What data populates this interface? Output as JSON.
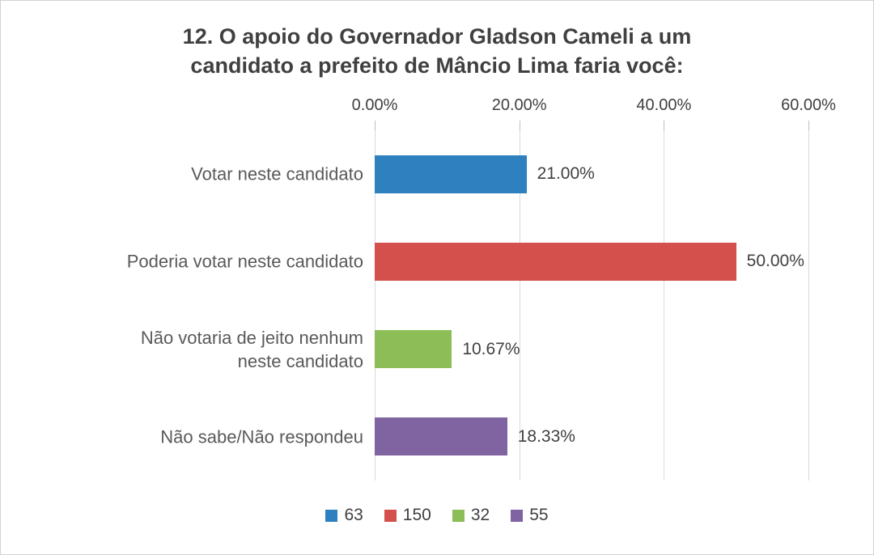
{
  "chart_data": {
    "type": "bar",
    "orientation": "horizontal",
    "title": "12. O apoio do Governador Gladson Cameli a um\ncandidato a prefeito de Mâncio Lima faria você:",
    "categories": [
      "Votar neste candidato",
      "Poderia votar neste candidato",
      "Não votaria de jeito nenhum\nneste candidato",
      "Não sabe/Não respondeu"
    ],
    "values": [
      21.0,
      50.0,
      10.67,
      18.33
    ],
    "value_labels": [
      "21.00%",
      "50.00%",
      "10.67%",
      "18.33%"
    ],
    "colors": [
      "#2e81be",
      "#d3504c",
      "#8cbd57",
      "#8064a2"
    ],
    "xlabel": "",
    "ylabel": "",
    "xlim": [
      0,
      60
    ],
    "x_ticks": [
      0,
      20,
      40,
      60
    ],
    "x_tick_labels": [
      "0.00%",
      "20.00%",
      "40.00%",
      "60.00%"
    ],
    "grid": "vertical",
    "legend": {
      "position": "bottom",
      "entries": [
        {
          "label": "63",
          "color": "#2e81be"
        },
        {
          "label": "150",
          "color": "#d3504c"
        },
        {
          "label": "32",
          "color": "#8cbd57"
        },
        {
          "label": "55",
          "color": "#8064a2"
        }
      ]
    }
  }
}
